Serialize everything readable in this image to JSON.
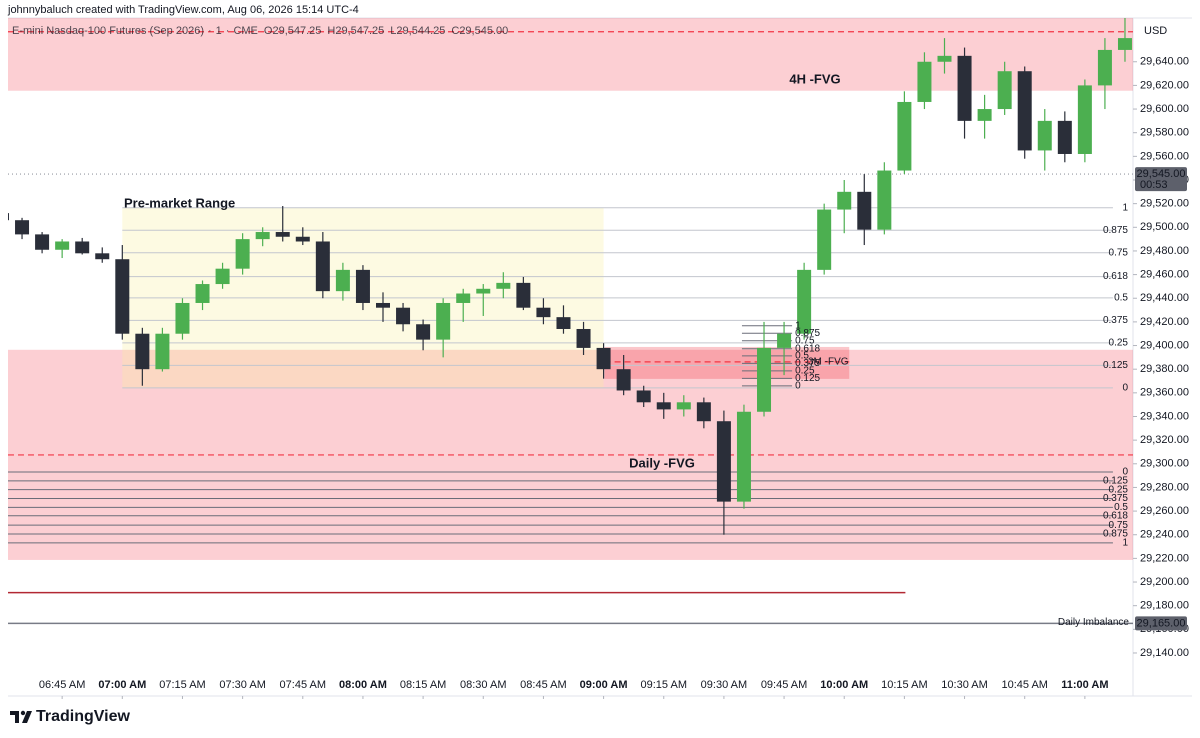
{
  "header": {
    "credit": "johnnybaluch created with TradingView.com, Aug 06, 2026 15:14 UTC-4",
    "logo": "TradingView"
  },
  "chart_data": {
    "type": "candlestick",
    "symbol": "E-mini Nasdaq-100 Futures (Sep 2026)",
    "interval": "1",
    "exchange": "CME",
    "legend_ohlc": {
      "keys": [
        "O",
        "H",
        "L",
        "C"
      ],
      "values": [
        29547.25,
        29547.25,
        29544.25,
        29545.0
      ],
      "value_labels": [
        "29,547.25",
        "29,547.25",
        "29,544.25",
        "29,545.00"
      ]
    },
    "currency": "USD",
    "up_color": "#4caf50",
    "down_color": "#2a2e39",
    "x": [
      390,
      395,
      400,
      405,
      410,
      415,
      420,
      425,
      430,
      435,
      440,
      445,
      450,
      455,
      460,
      465,
      470,
      475,
      480,
      485,
      490,
      495,
      500,
      505,
      510,
      515,
      520,
      525,
      530,
      535,
      540,
      545,
      550,
      555,
      560,
      565,
      570,
      575,
      580,
      585,
      590,
      595,
      600,
      605,
      610,
      615,
      620,
      625,
      630,
      635,
      640,
      645,
      650,
      655,
      660,
      665,
      670
    ],
    "open": [
      29512,
      29506,
      29494,
      29481,
      29488,
      29478,
      29473,
      29410,
      29380,
      29410,
      29436,
      29452,
      29465,
      29490,
      29496,
      29492,
      29488,
      29446,
      29464,
      29436,
      29432,
      29418,
      29405,
      29436,
      29444,
      29448,
      29453,
      29432,
      29424,
      29414,
      29398,
      29380,
      29362,
      29352,
      29346,
      29352,
      29336,
      29268,
      29344,
      29398,
      29410,
      29464,
      29515,
      29530,
      29498,
      29548,
      29606,
      29640,
      29645,
      29590,
      29600,
      29632,
      29565,
      29590,
      29562,
      29620,
      29650
    ],
    "high": [
      29515,
      29508,
      29496,
      29490,
      29491,
      29483,
      29485,
      29415,
      29415,
      29440,
      29455,
      29470,
      29495,
      29500,
      29518,
      29500,
      29496,
      29470,
      29468,
      29445,
      29436,
      29422,
      29440,
      29448,
      29452,
      29462,
      29458,
      29440,
      29434,
      29420,
      29402,
      29392,
      29366,
      29360,
      29358,
      29356,
      29345,
      29350,
      29420,
      29420,
      29470,
      29520,
      29540,
      29545,
      29555,
      29615,
      29648,
      29660,
      29652,
      29612,
      29640,
      29636,
      29600,
      29598,
      29625,
      29660,
      29677
    ],
    "low": [
      29500,
      29490,
      29478,
      29474,
      29477,
      29470,
      29405,
      29366,
      29378,
      29405,
      29430,
      29448,
      29460,
      29484,
      29488,
      29485,
      29440,
      29438,
      29430,
      29420,
      29412,
      29396,
      29390,
      29420,
      29425,
      29440,
      29430,
      29418,
      29410,
      29392,
      29372,
      29358,
      29348,
      29338,
      29340,
      29330,
      29240,
      29262,
      29340,
      29375,
      29405,
      29460,
      29495,
      29485,
      29494,
      29545,
      29600,
      29630,
      29575,
      29575,
      29595,
      29558,
      29548,
      29555,
      29555,
      29600,
      29640
    ],
    "close": [
      29506,
      29494,
      29481,
      29488,
      29478,
      29473,
      29410,
      29380,
      29410,
      29436,
      29452,
      29465,
      29490,
      29496,
      29492,
      29488,
      29446,
      29464,
      29436,
      29432,
      29418,
      29405,
      29436,
      29444,
      29448,
      29453,
      29432,
      29424,
      29414,
      29398,
      29380,
      29362,
      29352,
      29346,
      29352,
      29336,
      29268,
      29344,
      29398,
      29410,
      29464,
      29515,
      29530,
      29498,
      29548,
      29606,
      29640,
      29645,
      29590,
      29600,
      29632,
      29565,
      29590,
      29562,
      29620,
      29650,
      29660
    ],
    "xlim": [
      391.5,
      672
    ],
    "xticks": [
      {
        "value": 405,
        "label": "06:45 AM"
      },
      {
        "value": 420,
        "label": "07:00 AM"
      },
      {
        "value": 435,
        "label": "07:15 AM"
      },
      {
        "value": 450,
        "label": "07:30 AM"
      },
      {
        "value": 465,
        "label": "07:45 AM"
      },
      {
        "value": 480,
        "label": "08:00 AM"
      },
      {
        "value": 495,
        "label": "08:15 AM"
      },
      {
        "value": 510,
        "label": "08:30 AM"
      },
      {
        "value": 525,
        "label": "08:45 AM"
      },
      {
        "value": 540,
        "label": "09:00 AM"
      },
      {
        "value": 555,
        "label": "09:15 AM"
      },
      {
        "value": 570,
        "label": "09:30 AM"
      },
      {
        "value": 585,
        "label": "09:45 AM"
      },
      {
        "value": 600,
        "label": "10:00 AM"
      },
      {
        "value": 615,
        "label": "10:15 AM"
      },
      {
        "value": 630,
        "label": "10:30 AM"
      },
      {
        "value": 645,
        "label": "10:45 AM"
      },
      {
        "value": 660,
        "label": "11:00 AM"
      }
    ],
    "ylim": [
      29107,
      29677
    ],
    "yticks": [
      {
        "value": 29140,
        "label": "29,140.00"
      },
      {
        "value": 29160,
        "label": "29,160.00"
      },
      {
        "value": 29180,
        "label": "29,180.00"
      },
      {
        "value": 29200,
        "label": "29,200.00"
      },
      {
        "value": 29220,
        "label": "29,220.00"
      },
      {
        "value": 29240,
        "label": "29,240.00"
      },
      {
        "value": 29260,
        "label": "29,260.00"
      },
      {
        "value": 29280,
        "label": "29,280.00"
      },
      {
        "value": 29300,
        "label": "29,300.00"
      },
      {
        "value": 29320,
        "label": "29,320.00"
      },
      {
        "value": 29340,
        "label": "29,340.00"
      },
      {
        "value": 29360,
        "label": "29,360.00"
      },
      {
        "value": 29380,
        "label": "29,380.00"
      },
      {
        "value": 29400,
        "label": "29,400.00"
      },
      {
        "value": 29420,
        "label": "29,420.00"
      },
      {
        "value": 29440,
        "label": "29,440.00"
      },
      {
        "value": 29460,
        "label": "29,460.00"
      },
      {
        "value": 29480,
        "label": "29,480.00"
      },
      {
        "value": 29500,
        "label": "29,500.00"
      },
      {
        "value": 29520,
        "label": "29,520.00"
      },
      {
        "value": 29540,
        "label": "29,540.00"
      },
      {
        "value": 29560,
        "label": "29,560.00"
      },
      {
        "value": 29580,
        "label": "29,580.00"
      },
      {
        "value": 29600,
        "label": "29,600.00"
      },
      {
        "value": 29620,
        "label": "29,620.00"
      },
      {
        "value": 29640,
        "label": "29,640.00"
      }
    ],
    "grid": false,
    "zones": [
      {
        "label": "4H -FVG",
        "top": 29677,
        "bottom": 29615.5,
        "color": "rgba(242,54,69,0.24)",
        "text_color": "#131722"
      },
      {
        "label": "Daily -FVG",
        "top": 29396.4,
        "bottom": 29218.7,
        "color": "rgba(242,54,69,0.24)",
        "text_color": "#131722"
      },
      {
        "label": "Pre-market Range",
        "top": 29516.5,
        "bottom": 29364.2,
        "start": 420,
        "end": 540,
        "color": "rgba(250,238,160,0.3)",
        "text_color": "#131722"
      },
      {
        "label": "3M -FVG",
        "top": 29398.8,
        "bottom": 29371.8,
        "start": 540.25,
        "end": 601.25,
        "color": "rgba(242,54,69,0.28)",
        "text_color": "#f23645"
      }
    ],
    "fibs": [
      {
        "levels": [
          1,
          0.875,
          0.75,
          0.618,
          0.5,
          0.375,
          0.25,
          0.125,
          0
        ],
        "p0": 29364.2,
        "p1": 29516.5,
        "start": 420,
        "end": 667,
        "color": "#c3c6ce",
        "text_color": "#a3a6af"
      },
      {
        "levels": [
          0,
          0.125,
          0.25,
          0.375,
          0.5,
          0.618,
          0.75,
          0.875,
          1
        ],
        "p0": 29293.1,
        "p1": 29233.1,
        "end": 667,
        "color": "#6a6d78",
        "text_color": "#131722"
      },
      {
        "levels": [
          1,
          0.875,
          0.75,
          0.618,
          0.5,
          0.375,
          0.25,
          0.125,
          0
        ],
        "p0": 29365.9,
        "p1": 29416.7,
        "start": 574.5,
        "end": 587,
        "color": "#6a6d78",
        "text_color": "#131722"
      }
    ],
    "levels": [
      {
        "price": 29665.4,
        "color": "#f23645",
        "style": "dashed"
      },
      {
        "price": 29307.5,
        "color": "#f23645",
        "style": "dashed"
      },
      {
        "price": 29386.2,
        "color": "#f23645",
        "style": "dashed",
        "start": 540.25,
        "end": 601.25
      },
      {
        "price": 29191,
        "color": "#b22833",
        "style": "solid",
        "end": 615.25
      },
      {
        "price": 29165,
        "color": "#787b86",
        "style": "solid",
        "label": "Daily Imbalance",
        "axis_label": "29,165.00"
      },
      {
        "price": 29545,
        "color": "#9598a1",
        "style": "dotted",
        "axis_label": "29,545.00",
        "countdown": "00:53"
      }
    ]
  }
}
